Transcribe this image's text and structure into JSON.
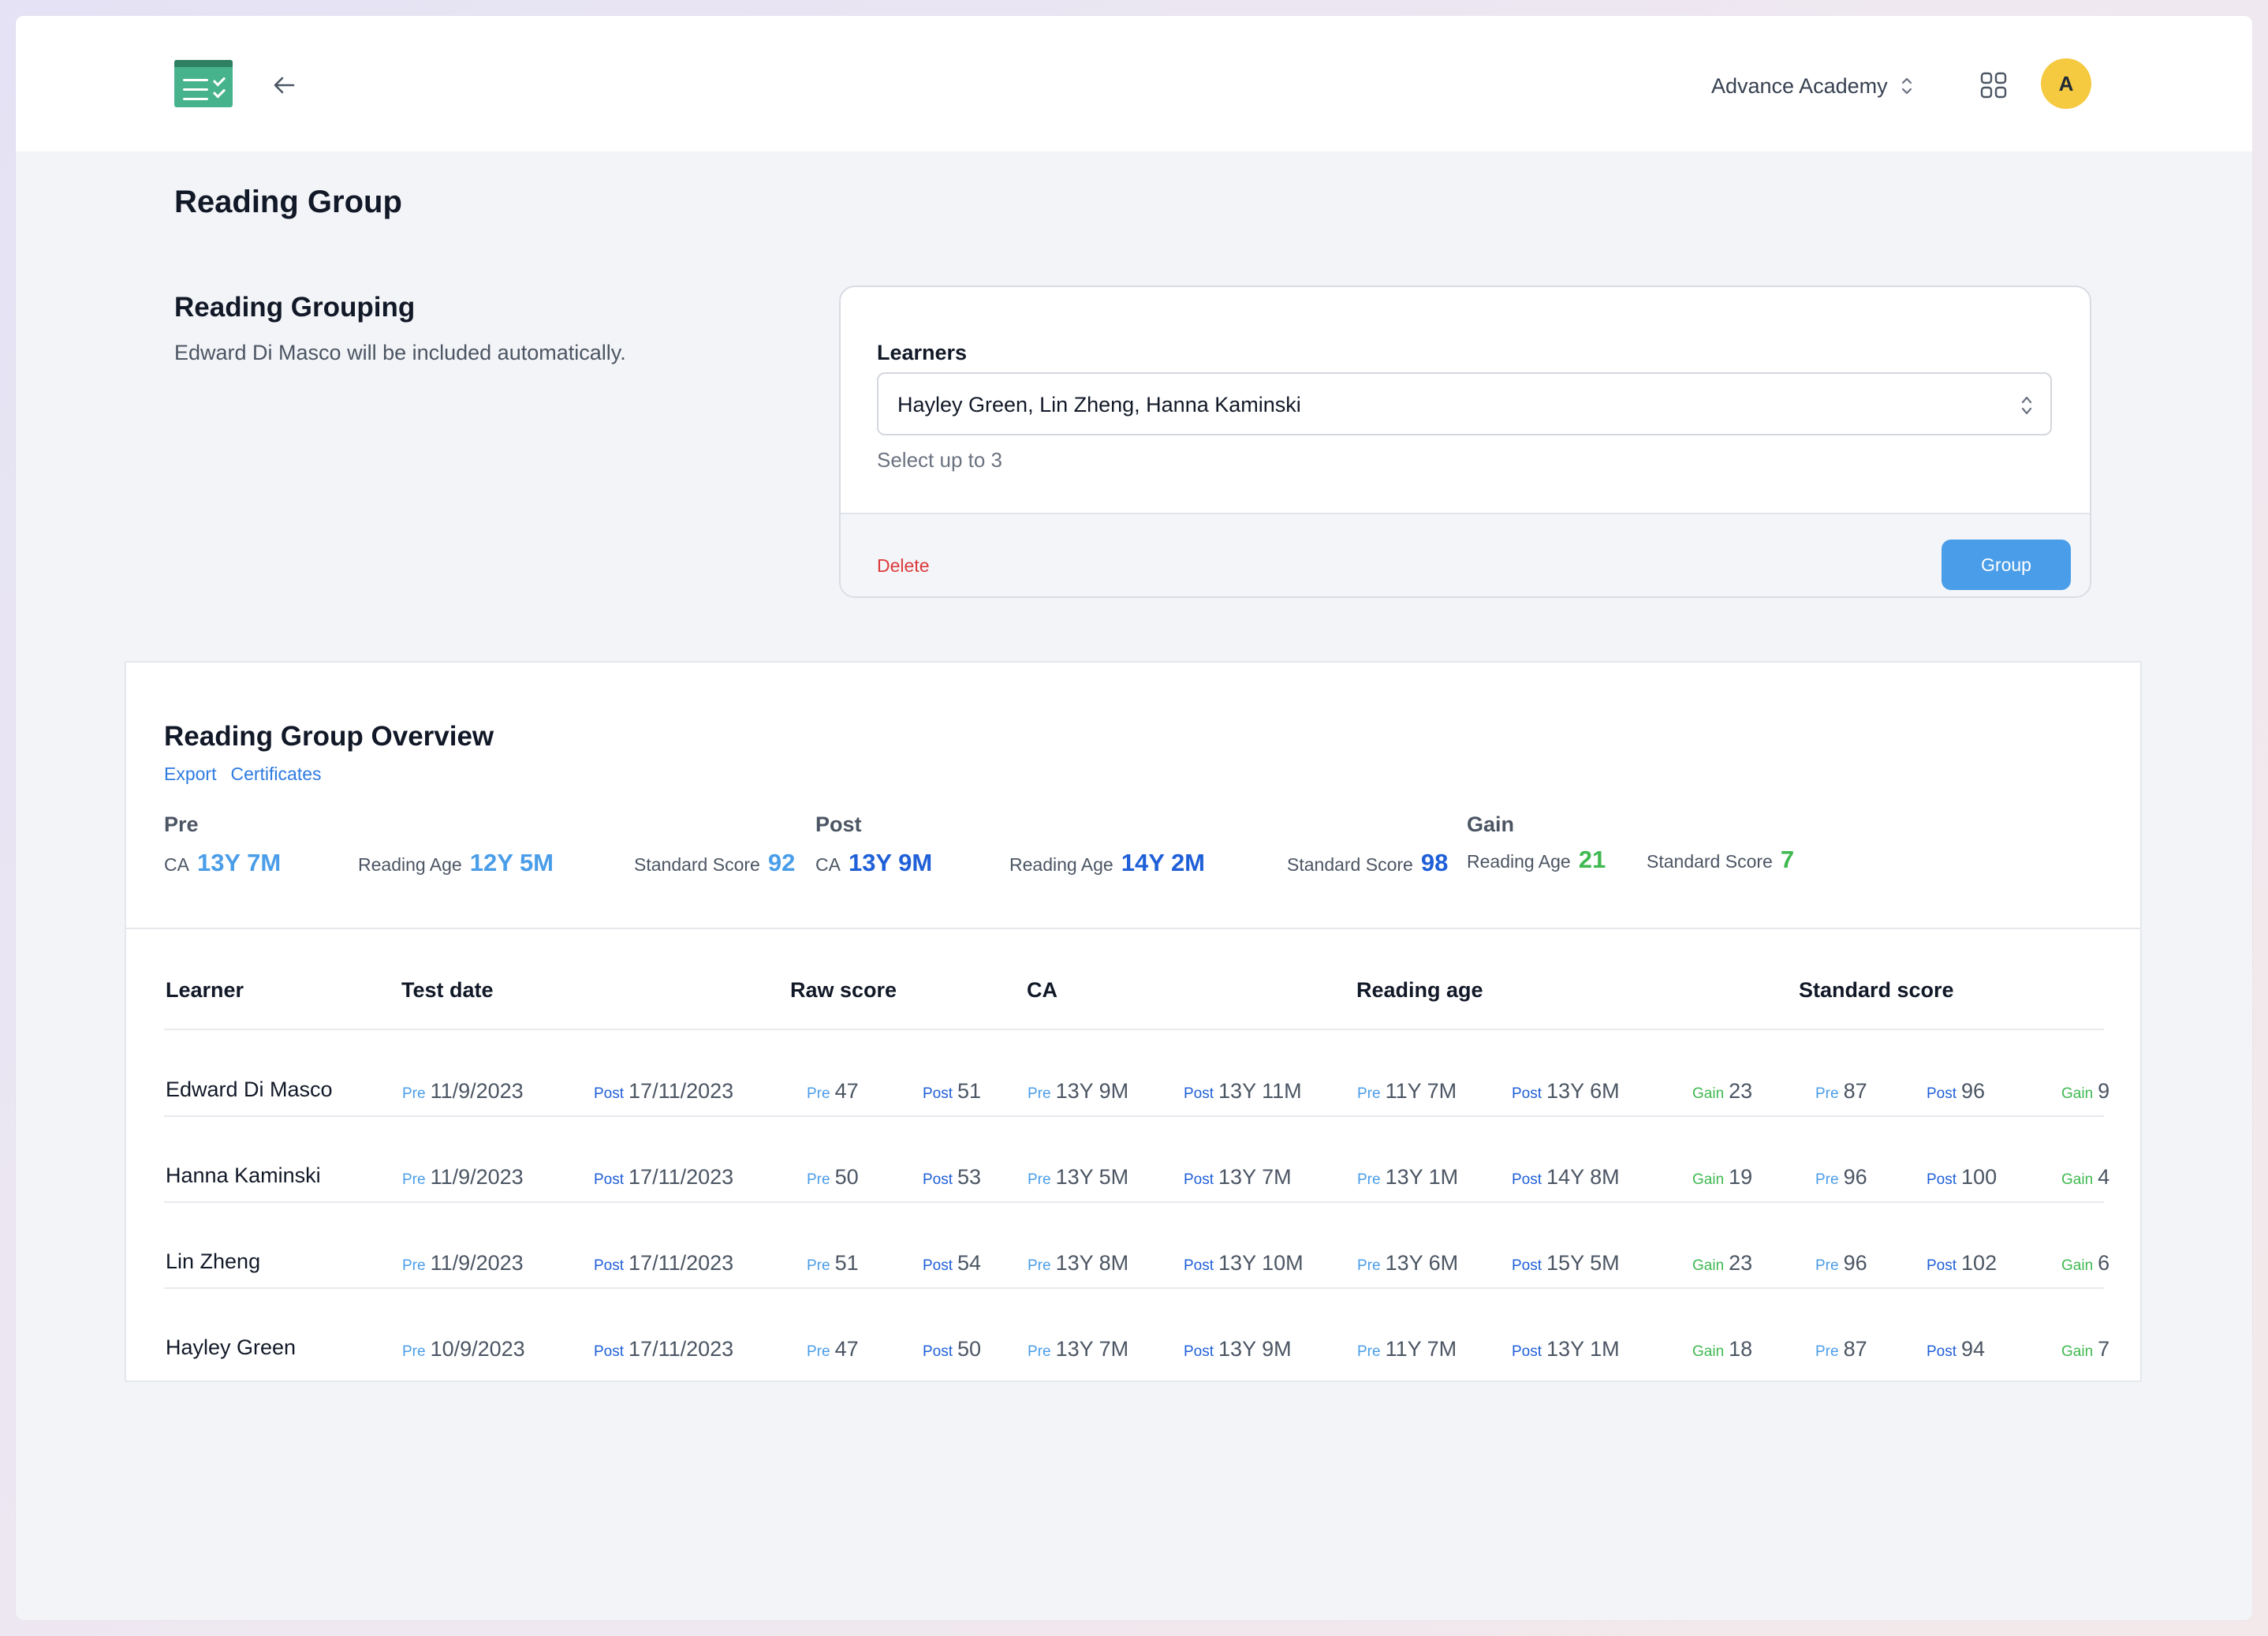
{
  "header": {
    "org_name": "Advance Academy",
    "avatar_initial": "A"
  },
  "page": {
    "title": "Reading Group"
  },
  "grouping": {
    "title": "Reading Grouping",
    "description": "Edward Di Masco will be included automatically.",
    "learners_label": "Learners",
    "learners_value": "Hayley Green, Lin Zheng, Hanna Kaminski",
    "help_text": "Select up to 3",
    "delete_label": "Delete",
    "group_label": "Group"
  },
  "overview": {
    "title": "Reading Group Overview",
    "export_label": "Export",
    "certificates_label": "Certificates",
    "pre": {
      "heading": "Pre",
      "ca_label": "CA",
      "ca": "13Y 7M",
      "reading_age_label": "Reading Age",
      "reading_age": "12Y 5M",
      "standard_score_label": "Standard Score",
      "standard_score": "92"
    },
    "post": {
      "heading": "Post",
      "ca_label": "CA",
      "ca": "13Y 9M",
      "reading_age_label": "Reading Age",
      "reading_age": "14Y 2M",
      "standard_score_label": "Standard Score",
      "standard_score": "98"
    },
    "gain": {
      "heading": "Gain",
      "reading_age_label": "Reading Age",
      "reading_age": "21",
      "standard_score_label": "Standard Score",
      "standard_score": "7"
    }
  },
  "table": {
    "columns": {
      "learner": "Learner",
      "test_date": "Test date",
      "raw_score": "Raw score",
      "ca": "CA",
      "reading_age": "Reading age",
      "standard_score": "Standard score"
    },
    "labels": {
      "pre": "Pre",
      "post": "Post",
      "gain": "Gain"
    },
    "rows": [
      {
        "learner": "Edward Di Masco",
        "test_date_pre": "11/9/2023",
        "test_date_post": "17/11/2023",
        "raw_pre": "47",
        "raw_post": "51",
        "ca_pre": "13Y 9M",
        "ca_post": "13Y 11M",
        "ra_pre": "11Y 7M",
        "ra_post": "13Y 6M",
        "ra_gain": "23",
        "ss_pre": "87",
        "ss_post": "96",
        "ss_gain": "9"
      },
      {
        "learner": "Hanna Kaminski",
        "test_date_pre": "11/9/2023",
        "test_date_post": "17/11/2023",
        "raw_pre": "50",
        "raw_post": "53",
        "ca_pre": "13Y 5M",
        "ca_post": "13Y 7M",
        "ra_pre": "13Y 1M",
        "ra_post": "14Y 8M",
        "ra_gain": "19",
        "ss_pre": "96",
        "ss_post": "100",
        "ss_gain": "4"
      },
      {
        "learner": "Lin Zheng",
        "test_date_pre": "11/9/2023",
        "test_date_post": "17/11/2023",
        "raw_pre": "51",
        "raw_post": "54",
        "ca_pre": "13Y 8M",
        "ca_post": "13Y 10M",
        "ra_pre": "13Y 6M",
        "ra_post": "15Y 5M",
        "ra_gain": "23",
        "ss_pre": "96",
        "ss_post": "102",
        "ss_gain": "6"
      },
      {
        "learner": "Hayley Green",
        "test_date_pre": "10/9/2023",
        "test_date_post": "17/11/2023",
        "raw_pre": "47",
        "raw_post": "50",
        "ca_pre": "13Y 7M",
        "ca_post": "13Y 9M",
        "ra_pre": "11Y 7M",
        "ra_post": "13Y 1M",
        "ra_gain": "18",
        "ss_pre": "87",
        "ss_post": "94",
        "ss_gain": "7"
      }
    ]
  },
  "colors": {
    "pre": "#4a9de8",
    "post": "#1f5fd8",
    "gain": "#3fb950",
    "delete": "#dc3a3a",
    "primary_button": "#4a9de8",
    "logo": "#46b38c",
    "avatar": "#f5c940"
  },
  "icons": {
    "logo": "checklist-logo-icon",
    "back": "arrow-left-icon",
    "org_select": "chevron-up-down-icon",
    "apps": "grid-icon",
    "learners_select": "chevron-up-down-icon"
  }
}
